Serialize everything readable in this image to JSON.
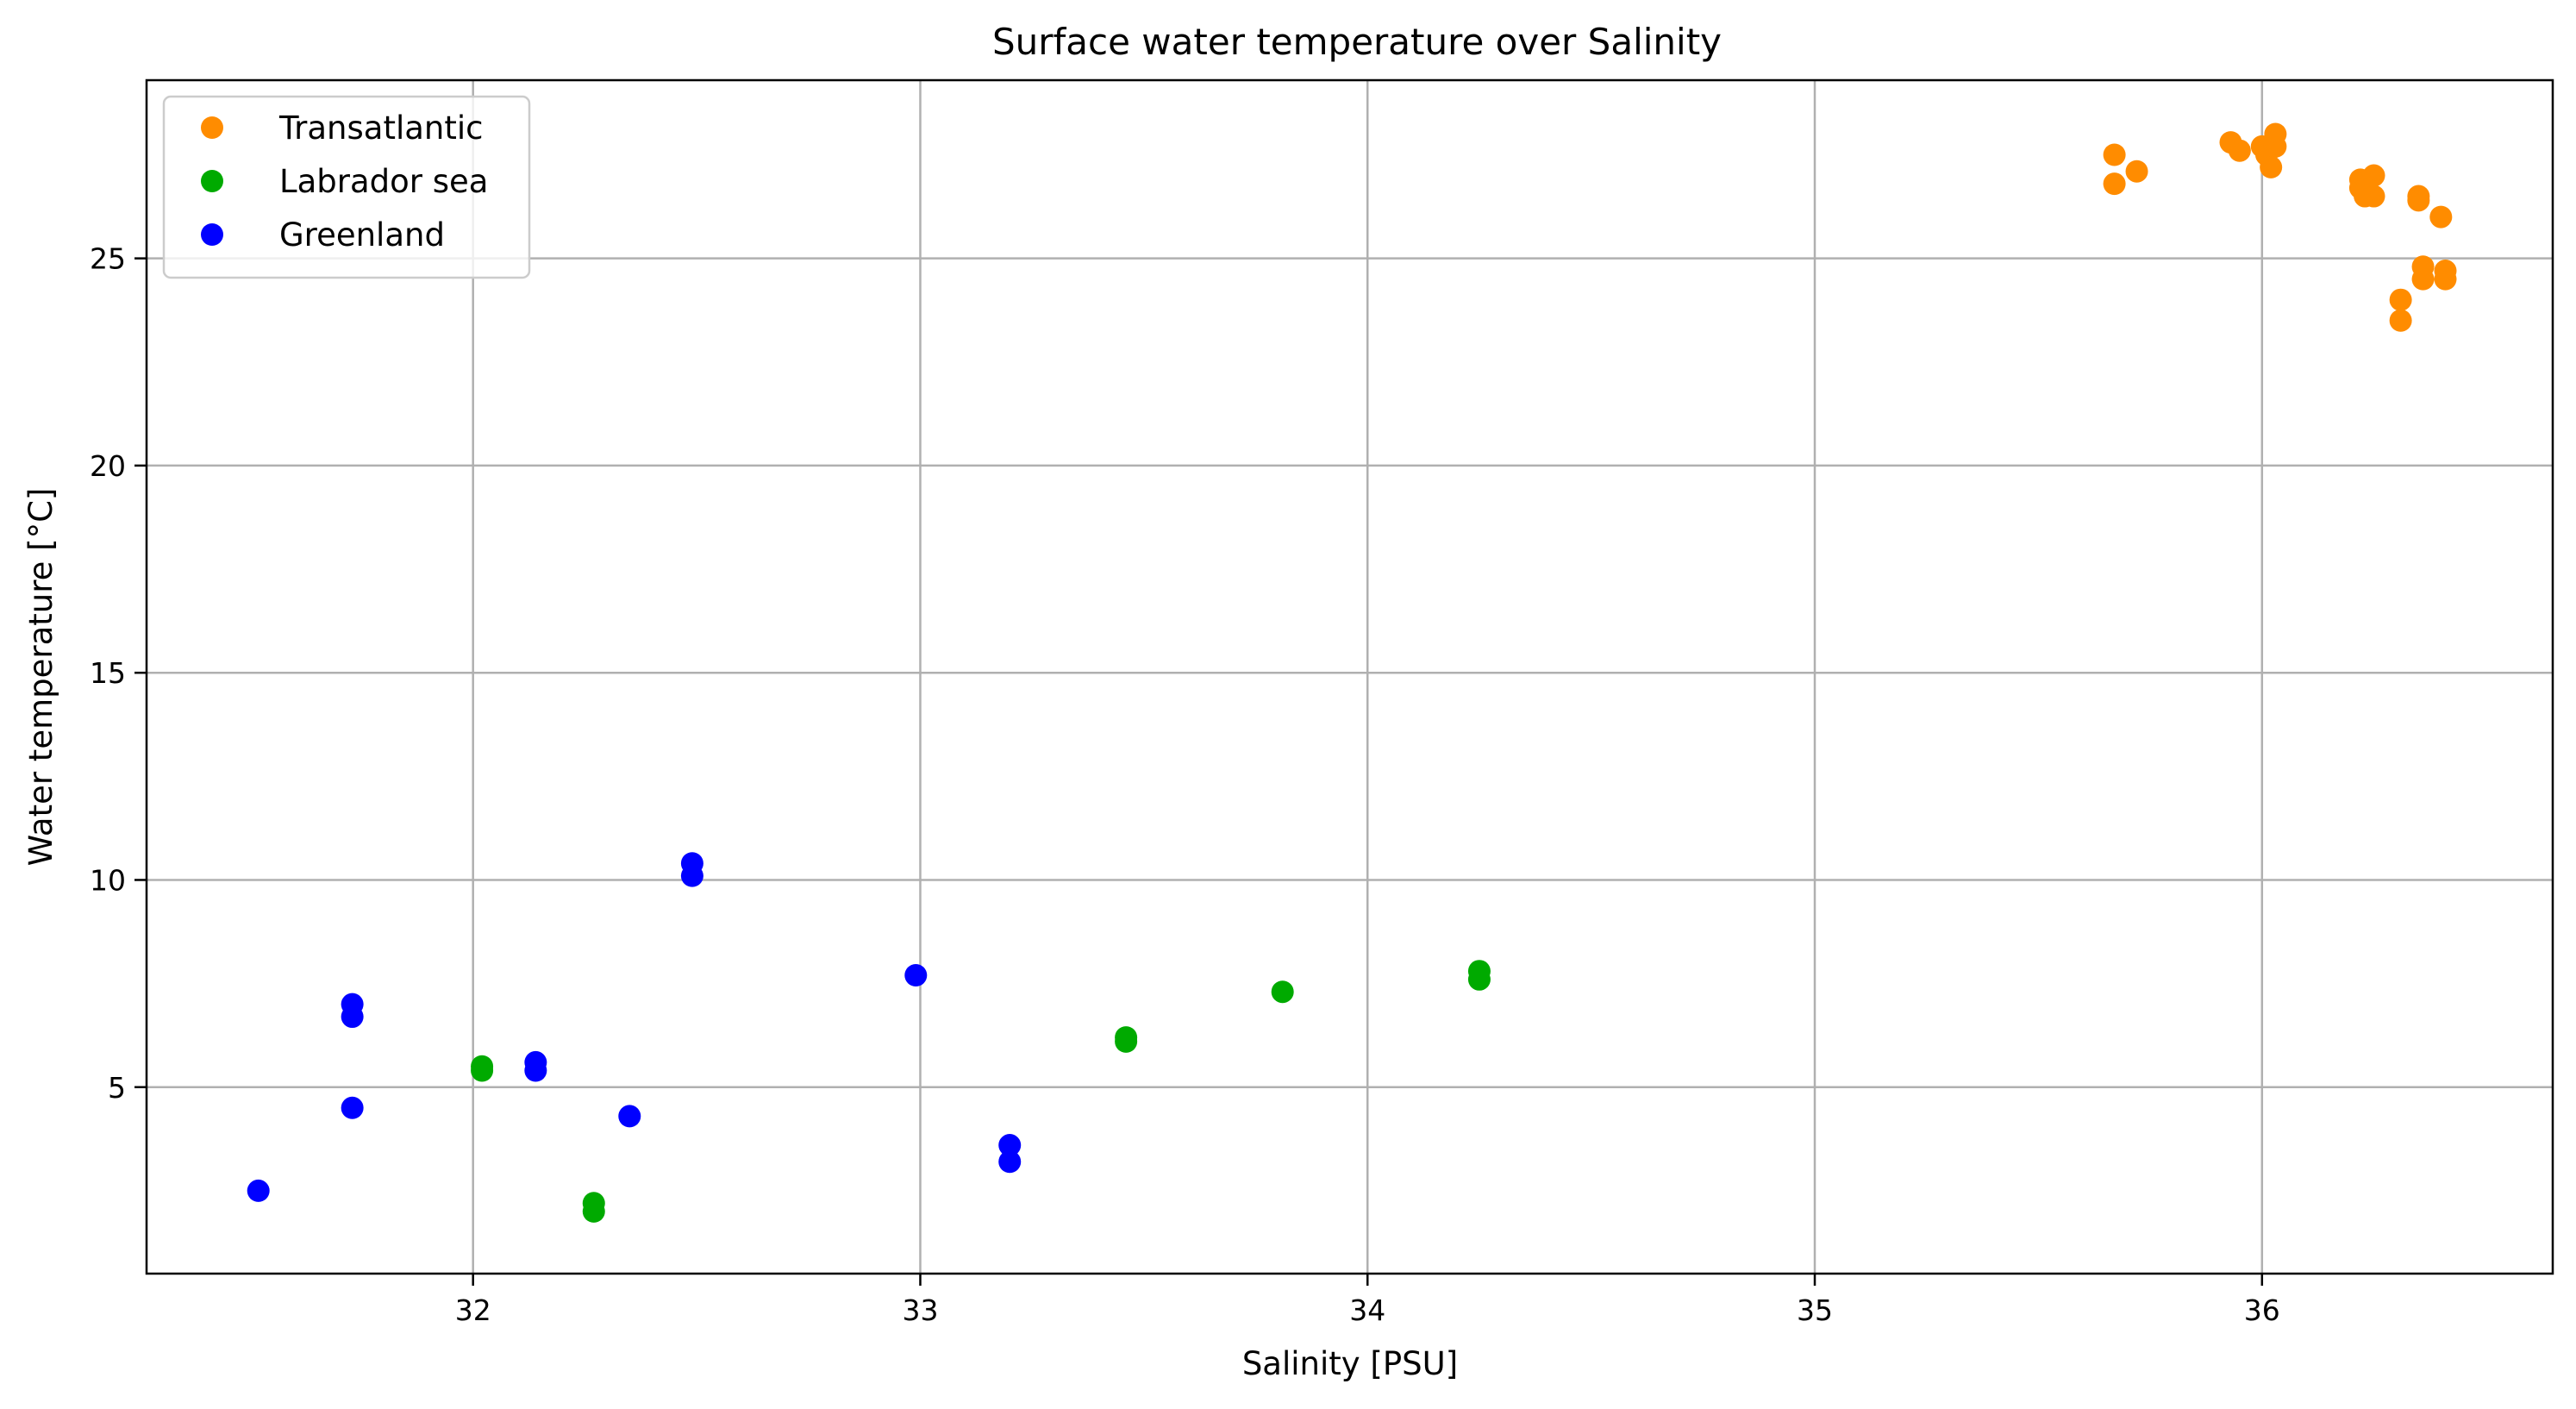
{
  "chart_data": {
    "type": "scatter",
    "title": "Surface water temperature over Salinity",
    "xlabel": "Salinity [PSU]",
    "ylabel": "Water temperature [°C]",
    "xlim": [
      31.27,
      36.65
    ],
    "ylim": [
      0.5,
      29.3
    ],
    "xticks": [
      32,
      33,
      34,
      35,
      36
    ],
    "yticks": [
      5,
      10,
      15,
      20,
      25
    ],
    "grid": true,
    "legend_position": "top-left",
    "series": [
      {
        "name": "Transatlantic",
        "color": "#ff8c00",
        "points": [
          [
            35.67,
            27.5
          ],
          [
            35.67,
            26.8
          ],
          [
            35.72,
            27.1
          ],
          [
            35.93,
            27.8
          ],
          [
            35.95,
            27.6
          ],
          [
            36.0,
            27.7
          ],
          [
            36.01,
            27.5
          ],
          [
            36.02,
            27.2
          ],
          [
            36.03,
            28.0
          ],
          [
            36.03,
            27.7
          ],
          [
            36.22,
            26.9
          ],
          [
            36.22,
            26.7
          ],
          [
            36.23,
            26.5
          ],
          [
            36.25,
            27.0
          ],
          [
            36.25,
            26.5
          ],
          [
            36.35,
            26.5
          ],
          [
            36.35,
            26.4
          ],
          [
            36.4,
            26.0
          ],
          [
            36.36,
            24.8
          ],
          [
            36.36,
            24.5
          ],
          [
            36.41,
            24.7
          ],
          [
            36.41,
            24.5
          ],
          [
            36.31,
            24.0
          ],
          [
            36.31,
            23.5
          ]
        ]
      },
      {
        "name": "Labrador sea",
        "color": "#00aa00",
        "points": [
          [
            32.02,
            5.5
          ],
          [
            32.02,
            5.4
          ],
          [
            32.27,
            2.2
          ],
          [
            32.27,
            2.0
          ],
          [
            33.46,
            6.2
          ],
          [
            33.46,
            6.1
          ],
          [
            33.81,
            7.3
          ],
          [
            34.25,
            7.8
          ],
          [
            34.25,
            7.6
          ]
        ]
      },
      {
        "name": "Greenland",
        "color": "#0000ff",
        "points": [
          [
            31.52,
            2.5
          ],
          [
            31.73,
            7.0
          ],
          [
            31.73,
            6.7
          ],
          [
            31.73,
            4.5
          ],
          [
            32.14,
            5.6
          ],
          [
            32.14,
            5.4
          ],
          [
            32.35,
            4.3
          ],
          [
            32.49,
            10.4
          ],
          [
            32.49,
            10.1
          ],
          [
            32.99,
            7.7
          ],
          [
            33.2,
            3.6
          ],
          [
            33.2,
            3.2
          ]
        ]
      }
    ]
  }
}
